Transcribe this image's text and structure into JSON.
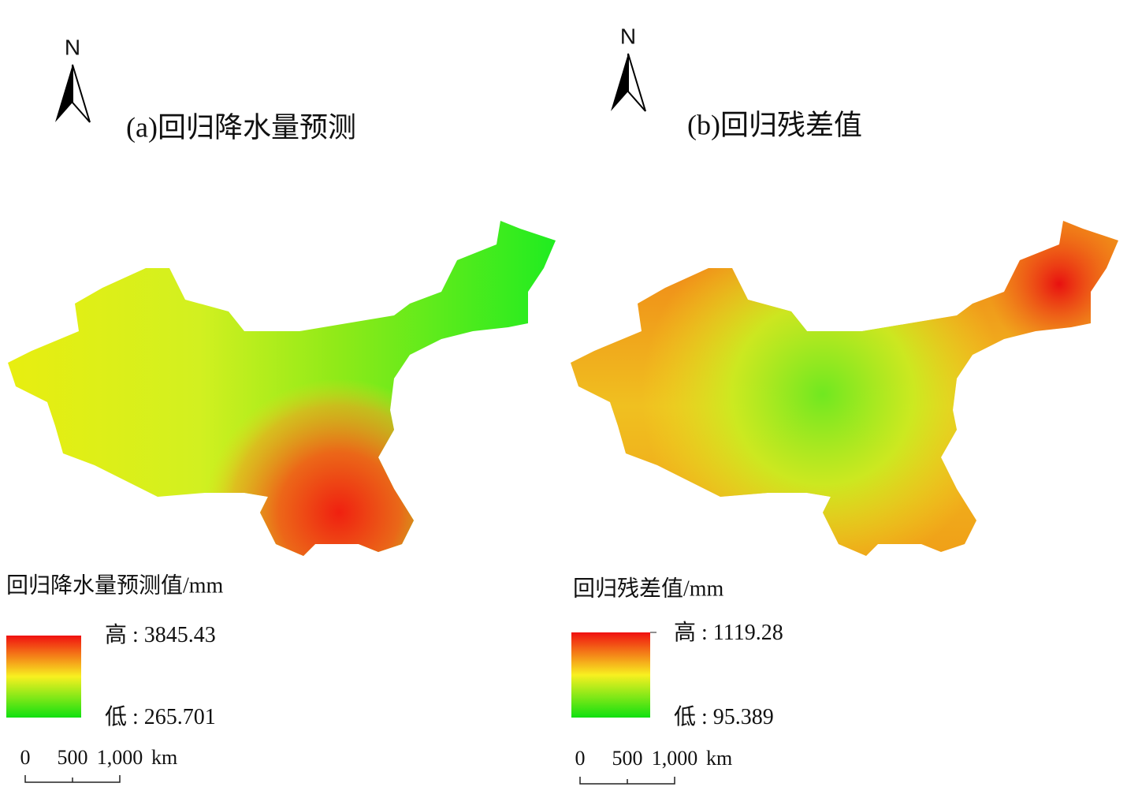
{
  "panels": [
    {
      "north": "N",
      "title": "(a)回归降水量预测",
      "legend": {
        "title": "回归降水量预测值/mm",
        "high_label": "高 :",
        "high_value": 3845.43,
        "low_label": "低 :",
        "low_value": 265.701
      },
      "scale": {
        "ticks": [
          "0",
          "500",
          "1,000"
        ],
        "unit": "km"
      }
    },
    {
      "north": "N",
      "title": "(b)回归残差值",
      "legend": {
        "title": "回归残差值/mm",
        "high_label": "高 :",
        "high_value": 1119.28,
        "low_label": "低 :",
        "low_value": 95.389
      },
      "scale": {
        "ticks": [
          "0",
          "500",
          "1,000"
        ],
        "unit": "km"
      }
    }
  ]
}
